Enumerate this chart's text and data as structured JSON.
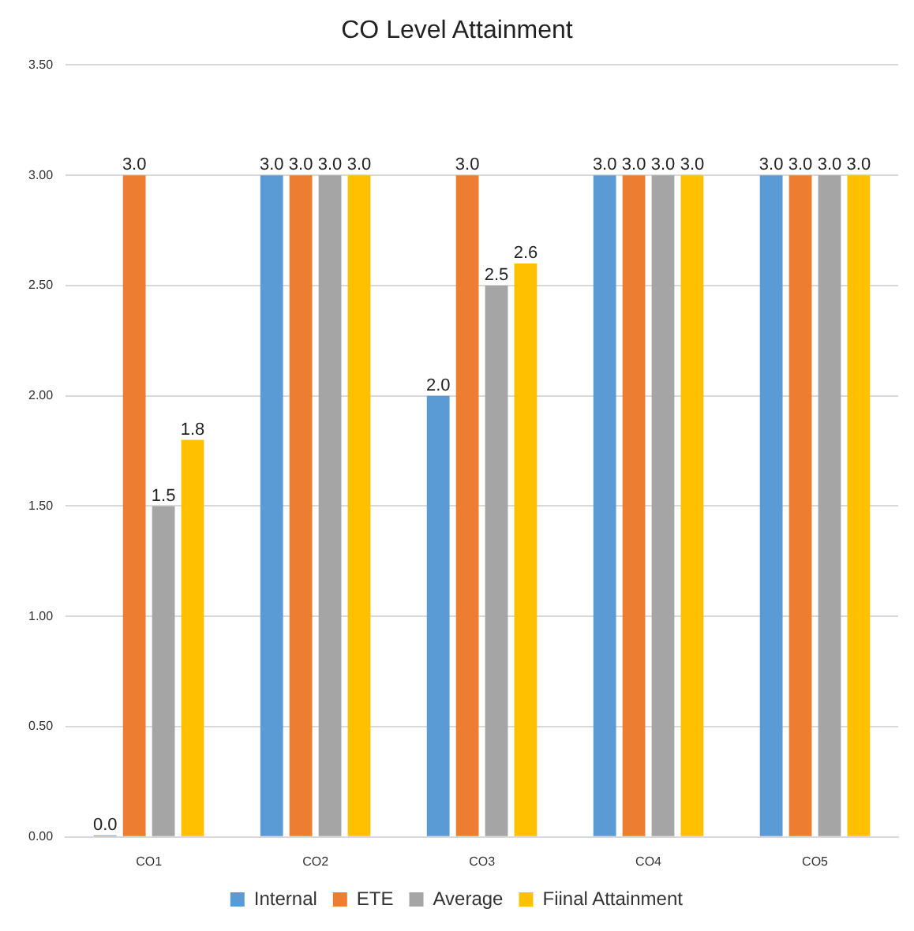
{
  "chart_data": {
    "type": "bar",
    "title": "CO Level Attainment",
    "categories": [
      "CO1",
      "CO2",
      "CO3",
      "CO4",
      "CO5"
    ],
    "series": [
      {
        "name": "Internal",
        "color": "#5b9bd5",
        "values": [
          0,
          3,
          2,
          3,
          3
        ],
        "value_labels": [
          "0.0",
          "3.0",
          "2.0",
          "3.0",
          "3.0"
        ]
      },
      {
        "name": "ETE",
        "color": "#ed7d31",
        "values": [
          3,
          3,
          3,
          3,
          3
        ],
        "value_labels": [
          "3.0",
          "3.0",
          "3.0",
          "3.0",
          "3.0"
        ]
      },
      {
        "name": "Average",
        "color": "#a5a5a5",
        "values": [
          1.5,
          3,
          2.5,
          3,
          3
        ],
        "value_labels": [
          "1.5",
          "3.0",
          "2.5",
          "3.0",
          "3.0"
        ]
      },
      {
        "name": "Fiinal Attainment",
        "color": "#ffc000",
        "values": [
          1.8,
          3,
          2.6,
          3,
          3
        ],
        "value_labels": [
          "1.8",
          "3.0",
          "2.6",
          "3.0",
          "3.0"
        ]
      }
    ],
    "ylim": [
      0,
      3.5
    ],
    "yticks": [
      {
        "value": 0,
        "label": "0.00"
      },
      {
        "value": 0.5,
        "label": "0.50"
      },
      {
        "value": 1,
        "label": "1.00"
      },
      {
        "value": 1.5,
        "label": "1.50"
      },
      {
        "value": 2,
        "label": "2.00"
      },
      {
        "value": 2.5,
        "label": "2.50"
      },
      {
        "value": 3,
        "label": "3.00"
      },
      {
        "value": 3.5,
        "label": "3.50"
      }
    ],
    "grid": "y",
    "legend": "bottom"
  }
}
